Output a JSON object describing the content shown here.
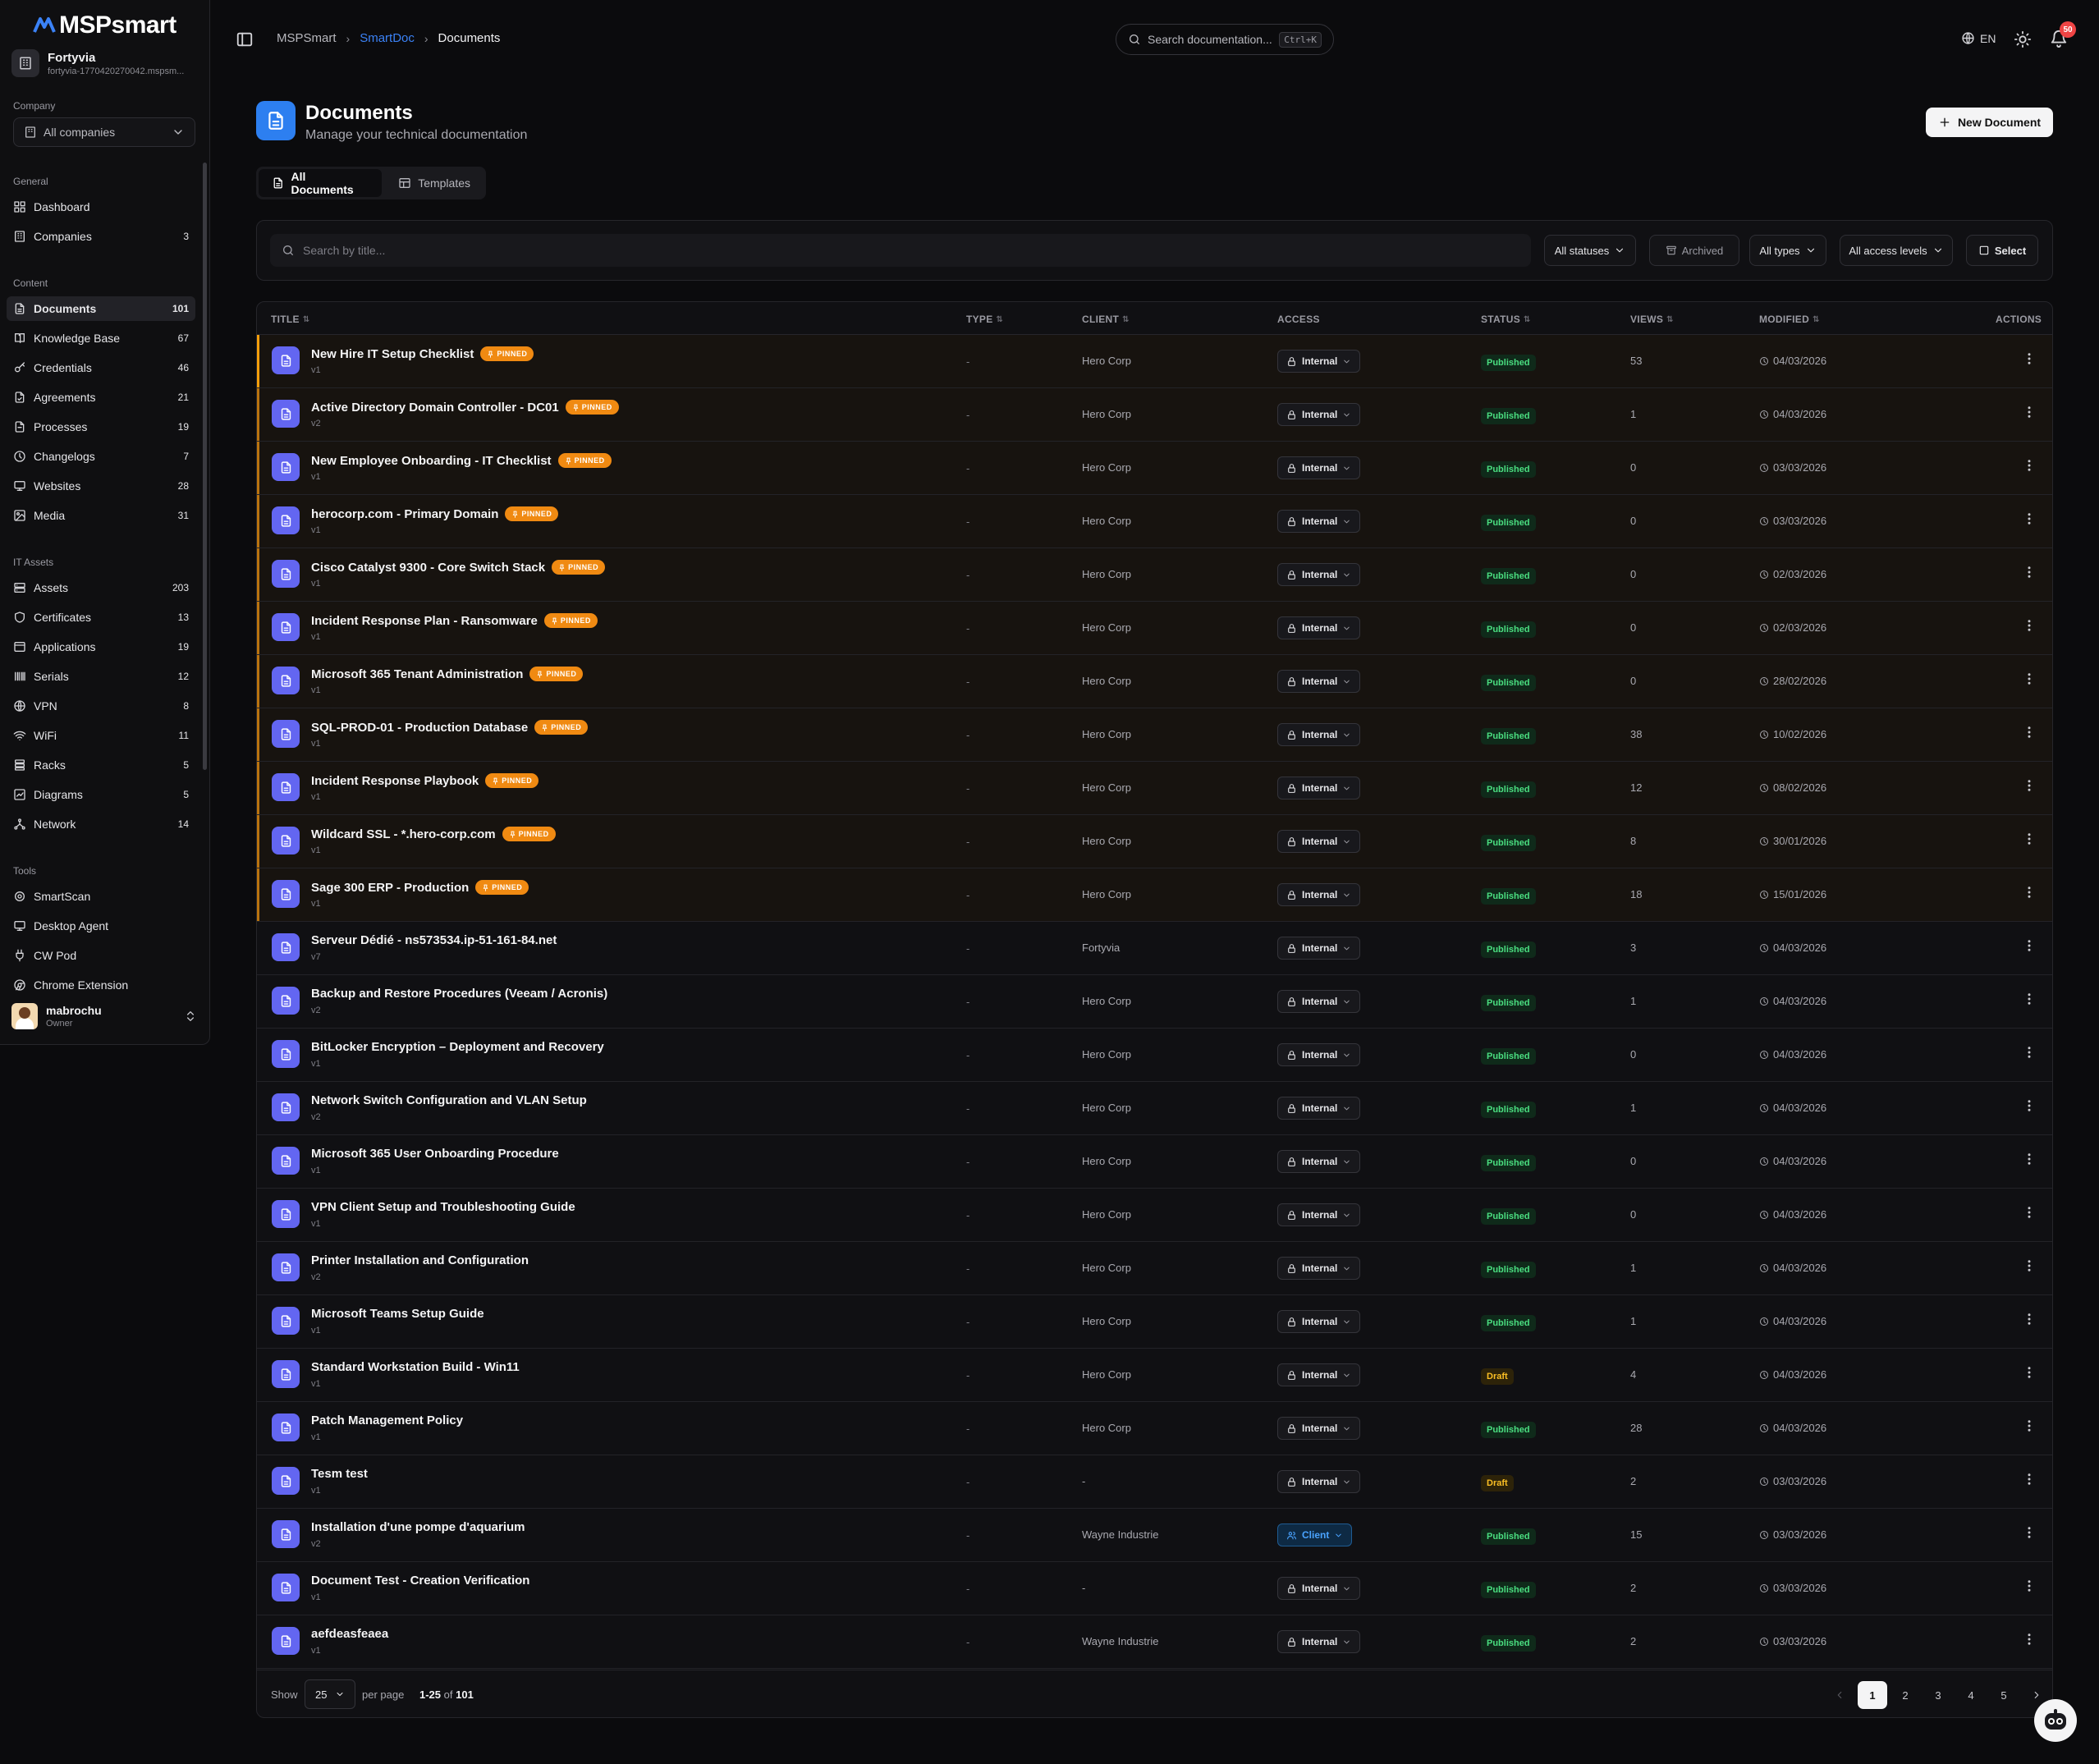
{
  "brand": {
    "logo_text": "MSPsmart"
  },
  "org": {
    "name": "Fortyvia",
    "url": "fortyvia-1770420270042.mspsm..."
  },
  "company_filter": {
    "label": "Company",
    "value": "All companies"
  },
  "nav_sections": {
    "general": {
      "label": "General",
      "items": [
        {
          "label": "Dashboard",
          "count": "",
          "icon": "dashboard-icon"
        },
        {
          "label": "Companies",
          "count": "3",
          "icon": "building-icon"
        }
      ]
    },
    "content": {
      "label": "Content",
      "items": [
        {
          "label": "Documents",
          "count": "101",
          "icon": "document-icon"
        },
        {
          "label": "Knowledge Base",
          "count": "67",
          "icon": "book-icon"
        },
        {
          "label": "Credentials",
          "count": "46",
          "icon": "key-icon"
        },
        {
          "label": "Agreements",
          "count": "21",
          "icon": "agreement-icon"
        },
        {
          "label": "Processes",
          "count": "19",
          "icon": "process-icon"
        },
        {
          "label": "Changelogs",
          "count": "7",
          "icon": "clock-icon"
        },
        {
          "label": "Websites",
          "count": "28",
          "icon": "monitor-icon"
        },
        {
          "label": "Media",
          "count": "31",
          "icon": "image-icon"
        }
      ]
    },
    "it_assets": {
      "label": "IT Assets",
      "items": [
        {
          "label": "Assets",
          "count": "203",
          "icon": "server-icon"
        },
        {
          "label": "Certificates",
          "count": "13",
          "icon": "shield-icon"
        },
        {
          "label": "Applications",
          "count": "19",
          "icon": "app-window-icon"
        },
        {
          "label": "Serials",
          "count": "12",
          "icon": "barcode-icon"
        },
        {
          "label": "VPN",
          "count": "8",
          "icon": "globe-icon"
        },
        {
          "label": "WiFi",
          "count": "11",
          "icon": "wifi-icon"
        },
        {
          "label": "Racks",
          "count": "5",
          "icon": "rack-icon"
        },
        {
          "label": "Diagrams",
          "count": "5",
          "icon": "diagram-icon"
        },
        {
          "label": "Network",
          "count": "14",
          "icon": "network-icon"
        }
      ]
    },
    "tools": {
      "label": "Tools",
      "items": [
        {
          "label": "SmartScan",
          "count": "",
          "icon": "scan-icon"
        },
        {
          "label": "Desktop Agent",
          "count": "",
          "icon": "desktop-icon"
        },
        {
          "label": "CW Pod",
          "count": "",
          "icon": "plug-icon"
        },
        {
          "label": "Chrome Extension",
          "count": "",
          "icon": "chrome-icon"
        }
      ]
    }
  },
  "user": {
    "name": "mabrochu",
    "role": "Owner"
  },
  "breadcrumb": {
    "root": "MSPSmart",
    "section": "SmartDoc",
    "current": "Documents"
  },
  "top_search": {
    "placeholder": "Search documentation...",
    "shortcut": "Ctrl+K"
  },
  "lang": "EN",
  "notifications": {
    "count": "50"
  },
  "page": {
    "title": "Documents",
    "subtitle": "Manage your technical documentation",
    "new_button": "New Document"
  },
  "tabs": [
    {
      "label": "All Documents",
      "icon": "document-icon",
      "active": true
    },
    {
      "label": "Templates",
      "icon": "template-icon",
      "active": false
    }
  ],
  "filters": {
    "search_placeholder": "Search by title...",
    "statuses": "All statuses",
    "archived": "Archived",
    "types": "All types",
    "access": "All access levels",
    "select": "Select"
  },
  "table": {
    "columns": {
      "title": "TITLE",
      "type": "TYPE",
      "client": "CLIENT",
      "access": "ACCESS",
      "status": "STATUS",
      "views": "VIEWS",
      "modified": "MODIFIED",
      "actions": "ACTIONS"
    },
    "pinned_label": "PINNED",
    "rows": [
      {
        "title": "New Hire IT Setup Checklist",
        "pinned": true,
        "version": "v1",
        "type": "-",
        "client": "Hero Corp",
        "access": "Internal",
        "status": "Published",
        "views": "53",
        "modified": "04/03/2026"
      },
      {
        "title": "Active Directory Domain Controller - DC01",
        "pinned": true,
        "version": "v2",
        "type": "-",
        "client": "Hero Corp",
        "access": "Internal",
        "status": "Published",
        "views": "1",
        "modified": "04/03/2026"
      },
      {
        "title": "New Employee Onboarding - IT Checklist",
        "pinned": true,
        "version": "v1",
        "type": "-",
        "client": "Hero Corp",
        "access": "Internal",
        "status": "Published",
        "views": "0",
        "modified": "03/03/2026"
      },
      {
        "title": "herocorp.com - Primary Domain",
        "pinned": true,
        "version": "v1",
        "type": "-",
        "client": "Hero Corp",
        "access": "Internal",
        "status": "Published",
        "views": "0",
        "modified": "03/03/2026"
      },
      {
        "title": "Cisco Catalyst 9300 - Core Switch Stack",
        "pinned": true,
        "version": "v1",
        "type": "-",
        "client": "Hero Corp",
        "access": "Internal",
        "status": "Published",
        "views": "0",
        "modified": "02/03/2026"
      },
      {
        "title": "Incident Response Plan - Ransomware",
        "pinned": true,
        "version": "v1",
        "type": "-",
        "client": "Hero Corp",
        "access": "Internal",
        "status": "Published",
        "views": "0",
        "modified": "02/03/2026"
      },
      {
        "title": "Microsoft 365 Tenant Administration",
        "pinned": true,
        "version": "v1",
        "type": "-",
        "client": "Hero Corp",
        "access": "Internal",
        "status": "Published",
        "views": "0",
        "modified": "28/02/2026"
      },
      {
        "title": "SQL-PROD-01 - Production Database",
        "pinned": true,
        "version": "v1",
        "type": "-",
        "client": "Hero Corp",
        "access": "Internal",
        "status": "Published",
        "views": "38",
        "modified": "10/02/2026"
      },
      {
        "title": "Incident Response Playbook",
        "pinned": true,
        "version": "v1",
        "type": "-",
        "client": "Hero Corp",
        "access": "Internal",
        "status": "Published",
        "views": "12",
        "modified": "08/02/2026"
      },
      {
        "title": "Wildcard SSL - *.hero-corp.com",
        "pinned": true,
        "version": "v1",
        "type": "-",
        "client": "Hero Corp",
        "access": "Internal",
        "status": "Published",
        "views": "8",
        "modified": "30/01/2026"
      },
      {
        "title": "Sage 300 ERP - Production",
        "pinned": true,
        "version": "v1",
        "type": "-",
        "client": "Hero Corp",
        "access": "Internal",
        "status": "Published",
        "views": "18",
        "modified": "15/01/2026"
      },
      {
        "title": "Serveur Dédié - ns573534.ip-51-161-84.net",
        "pinned": false,
        "version": "v7",
        "type": "-",
        "client": "Fortyvia",
        "access": "Internal",
        "status": "Published",
        "views": "3",
        "modified": "04/03/2026"
      },
      {
        "title": "Backup and Restore Procedures (Veeam / Acronis)",
        "pinned": false,
        "version": "v2",
        "type": "-",
        "client": "Hero Corp",
        "access": "Internal",
        "status": "Published",
        "views": "1",
        "modified": "04/03/2026"
      },
      {
        "title": "BitLocker Encryption – Deployment and Recovery",
        "pinned": false,
        "version": "v1",
        "type": "-",
        "client": "Hero Corp",
        "access": "Internal",
        "status": "Published",
        "views": "0",
        "modified": "04/03/2026"
      },
      {
        "title": "Network Switch Configuration and VLAN Setup",
        "pinned": false,
        "version": "v2",
        "type": "-",
        "client": "Hero Corp",
        "access": "Internal",
        "status": "Published",
        "views": "1",
        "modified": "04/03/2026"
      },
      {
        "title": "Microsoft 365 User Onboarding Procedure",
        "pinned": false,
        "version": "v1",
        "type": "-",
        "client": "Hero Corp",
        "access": "Internal",
        "status": "Published",
        "views": "0",
        "modified": "04/03/2026"
      },
      {
        "title": "VPN Client Setup and Troubleshooting Guide",
        "pinned": false,
        "version": "v1",
        "type": "-",
        "client": "Hero Corp",
        "access": "Internal",
        "status": "Published",
        "views": "0",
        "modified": "04/03/2026"
      },
      {
        "title": "Printer Installation and Configuration",
        "pinned": false,
        "version": "v2",
        "type": "-",
        "client": "Hero Corp",
        "access": "Internal",
        "status": "Published",
        "views": "1",
        "modified": "04/03/2026"
      },
      {
        "title": "Microsoft Teams Setup Guide",
        "pinned": false,
        "version": "v1",
        "type": "-",
        "client": "Hero Corp",
        "access": "Internal",
        "status": "Published",
        "views": "1",
        "modified": "04/03/2026"
      },
      {
        "title": "Standard Workstation Build - Win11",
        "pinned": false,
        "version": "v1",
        "type": "-",
        "client": "Hero Corp",
        "access": "Internal",
        "status": "Draft",
        "views": "4",
        "modified": "04/03/2026"
      },
      {
        "title": "Patch Management Policy",
        "pinned": false,
        "version": "v1",
        "type": "-",
        "client": "Hero Corp",
        "access": "Internal",
        "status": "Published",
        "views": "28",
        "modified": "04/03/2026"
      },
      {
        "title": "Tesm test",
        "pinned": false,
        "version": "v1",
        "type": "-",
        "client": "-",
        "access": "Internal",
        "status": "Draft",
        "views": "2",
        "modified": "03/03/2026"
      },
      {
        "title": "Installation d'une pompe d'aquarium",
        "pinned": false,
        "version": "v2",
        "type": "-",
        "client": "Wayne Industrie",
        "access": "Client",
        "status": "Published",
        "views": "15",
        "modified": "03/03/2026"
      },
      {
        "title": "Document Test - Creation Verification",
        "pinned": false,
        "version": "v1",
        "type": "-",
        "client": "-",
        "access": "Internal",
        "status": "Published",
        "views": "2",
        "modified": "03/03/2026"
      },
      {
        "title": "aefdeasfeaea",
        "pinned": false,
        "version": "v1",
        "type": "-",
        "client": "Wayne Industrie",
        "access": "Internal",
        "status": "Published",
        "views": "2",
        "modified": "03/03/2026"
      }
    ]
  },
  "pagination": {
    "show_label": "Show",
    "per_page_value": "25",
    "per_page_label": "per page",
    "range": "1-25",
    "of_label": "of",
    "total": "101",
    "pages": [
      "1",
      "2",
      "3",
      "4",
      "5"
    ],
    "current": "1"
  },
  "colors": {
    "accent": "#3b82f6",
    "pinned": "#f08a12",
    "doc_icon": "#6366f1",
    "published": "#4ade80",
    "draft": "#fbbf24",
    "client_access": "#4aa3ff"
  }
}
